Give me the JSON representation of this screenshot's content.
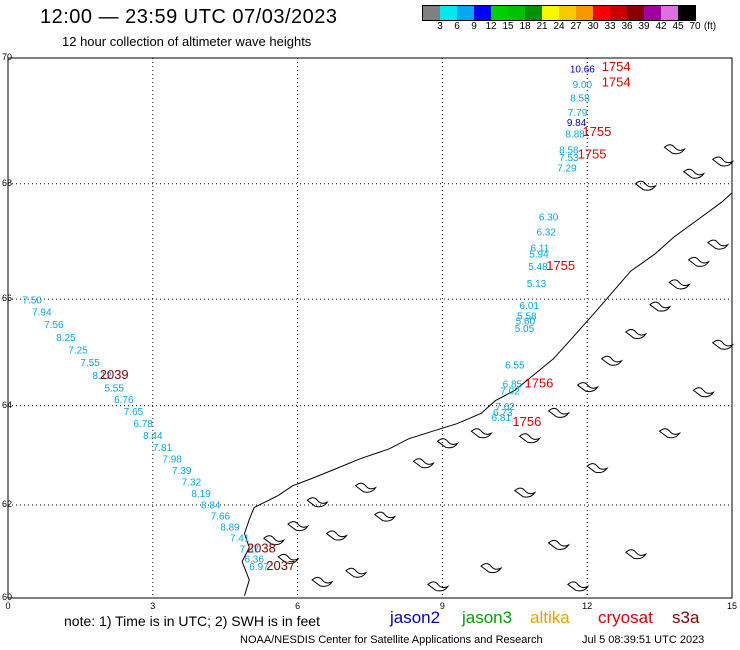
{
  "header": {
    "title": "12:00 — 23:59 UTC 07/03/2023",
    "subtitle": "12 hour collection of altimeter wave heights"
  },
  "legend": {
    "unit": "(ft)",
    "bins": [
      {
        "label": "3",
        "color": "#808080"
      },
      {
        "label": "6",
        "color": "#00e8f0"
      },
      {
        "label": "9",
        "color": "#00a8f0"
      },
      {
        "label": "12",
        "color": "#0000f8"
      },
      {
        "label": "15",
        "color": "#00d000"
      },
      {
        "label": "18",
        "color": "#00c000"
      },
      {
        "label": "21",
        "color": "#009000"
      },
      {
        "label": "24",
        "color": "#f8f800"
      },
      {
        "label": "27",
        "color": "#f8c800"
      },
      {
        "label": "30",
        "color": "#f89800"
      },
      {
        "label": "33",
        "color": "#f80000"
      },
      {
        "label": "36",
        "color": "#c80000"
      },
      {
        "label": "39",
        "color": "#880000"
      },
      {
        "label": "42",
        "color": "#a000a0"
      },
      {
        "label": "45",
        "color": "#e070e0"
      },
      {
        "label": "70",
        "color": "#000000"
      }
    ]
  },
  "axes": {
    "lat_ticks": [
      {
        "label": "70",
        "value": 70
      },
      {
        "label": "68",
        "value": 68
      },
      {
        "label": "66",
        "value": 66
      },
      {
        "label": "64",
        "value": 64
      },
      {
        "label": "62",
        "value": 62
      },
      {
        "label": "60",
        "value": 60
      }
    ],
    "lon_ticks": [
      {
        "label": "0",
        "value": 0
      },
      {
        "label": "3",
        "value": 3
      },
      {
        "label": "6",
        "value": 6
      },
      {
        "label": "9",
        "value": 9
      },
      {
        "label": "12",
        "value": 12
      },
      {
        "label": "15",
        "value": 15
      }
    ]
  },
  "observations": {
    "track_east": [
      {
        "h": "10.66",
        "c": "#0000c8",
        "lon": 11.9,
        "lat": 69.78
      },
      {
        "h": "9.00",
        "c": "#00a8e8",
        "lon": 11.9,
        "lat": 69.54
      },
      {
        "h": "8.58",
        "c": "#00a8e8",
        "lon": 11.85,
        "lat": 69.33
      },
      {
        "h": "7.79",
        "c": "#00a8e8",
        "lon": 11.8,
        "lat": 69.1
      },
      {
        "h": "9.84",
        "c": "#0000c8",
        "lon": 11.78,
        "lat": 68.94
      },
      {
        "h": "8.88",
        "c": "#00a8e8",
        "lon": 11.75,
        "lat": 68.76
      },
      {
        "h": "8.58",
        "c": "#00a8e8",
        "lon": 11.62,
        "lat": 68.5
      },
      {
        "h": "7.53",
        "c": "#00a8e8",
        "lon": 11.62,
        "lat": 68.38
      },
      {
        "h": "7.29",
        "c": "#00a8e8",
        "lon": 11.58,
        "lat": 68.2
      },
      {
        "h": "6.30",
        "c": "#00a8e8",
        "lon": 11.2,
        "lat": 67.38
      },
      {
        "h": "6.32",
        "c": "#00a8e8",
        "lon": 11.15,
        "lat": 67.12
      },
      {
        "h": "6.11",
        "c": "#00a8e8",
        "lon": 11.02,
        "lat": 66.85
      },
      {
        "h": "5.94",
        "c": "#00a8e8",
        "lon": 11.0,
        "lat": 66.74
      },
      {
        "h": "5.48",
        "c": "#00a8e8",
        "lon": 10.98,
        "lat": 66.52
      },
      {
        "h": "5.13",
        "c": "#00a8e8",
        "lon": 10.95,
        "lat": 66.22
      },
      {
        "h": "6.01",
        "c": "#00a8e8",
        "lon": 10.8,
        "lat": 65.82
      },
      {
        "h": "5.58",
        "c": "#00a8e8",
        "lon": 10.75,
        "lat": 65.63
      },
      {
        "h": "5.60",
        "c": "#00a8e8",
        "lon": 10.72,
        "lat": 65.54
      },
      {
        "h": "5.05",
        "c": "#00a8e8",
        "lon": 10.7,
        "lat": 65.4
      },
      {
        "h": "6.55",
        "c": "#00a8e8",
        "lon": 10.5,
        "lat": 64.72
      },
      {
        "h": "6.85",
        "c": "#00a8e8",
        "lon": 10.45,
        "lat": 64.35
      },
      {
        "h": "7.02",
        "c": "#00a8e8",
        "lon": 10.4,
        "lat": 64.22
      },
      {
        "h": "7.62",
        "c": "#00a8e8",
        "lon": 10.3,
        "lat": 63.92
      },
      {
        "h": "6.73",
        "c": "#00a8e8",
        "lon": 10.25,
        "lat": 63.8
      },
      {
        "h": "6.81",
        "c": "#00a8e8",
        "lon": 10.22,
        "lat": 63.7
      }
    ],
    "track_west": [
      {
        "h": "7.50",
        "c": "#00a8e8",
        "lon": 0.5,
        "lat": 65.92
      },
      {
        "h": "7.94",
        "c": "#00a8e8",
        "lon": 0.7,
        "lat": 65.7
      },
      {
        "h": "7.56",
        "c": "#00a8e8",
        "lon": 0.95,
        "lat": 65.47
      },
      {
        "h": "8.25",
        "c": "#00a8e8",
        "lon": 1.2,
        "lat": 65.23
      },
      {
        "h": "7.25",
        "c": "#00a8e8",
        "lon": 1.45,
        "lat": 65.0
      },
      {
        "h": "7.55",
        "c": "#00a8e8",
        "lon": 1.7,
        "lat": 64.76
      },
      {
        "h": "8.12",
        "c": "#00a8e8",
        "lon": 1.95,
        "lat": 64.52
      },
      {
        "h": "5.55",
        "c": "#00a8e8",
        "lon": 2.2,
        "lat": 64.28
      },
      {
        "h": "6.76",
        "c": "#00a8e8",
        "lon": 2.4,
        "lat": 64.05
      },
      {
        "h": "7.65",
        "c": "#00a8e8",
        "lon": 2.6,
        "lat": 63.82
      },
      {
        "h": "6.78",
        "c": "#00a8e8",
        "lon": 2.8,
        "lat": 63.58
      },
      {
        "h": "8.44",
        "c": "#00a8e8",
        "lon": 3.0,
        "lat": 63.35
      },
      {
        "h": "7.81",
        "c": "#00a8e8",
        "lon": 3.2,
        "lat": 63.11
      },
      {
        "h": "7.98",
        "c": "#00a8e8",
        "lon": 3.4,
        "lat": 62.87
      },
      {
        "h": "7.39",
        "c": "#00a8e8",
        "lon": 3.6,
        "lat": 62.64
      },
      {
        "h": "7.32",
        "c": "#00a8e8",
        "lon": 3.8,
        "lat": 62.4
      },
      {
        "h": "8.19",
        "c": "#00a8e8",
        "lon": 4.0,
        "lat": 62.17
      },
      {
        "h": "8.84",
        "c": "#00a8e8",
        "lon": 4.2,
        "lat": 61.93
      },
      {
        "h": "7.66",
        "c": "#00a8e8",
        "lon": 4.4,
        "lat": 61.7
      },
      {
        "h": "8.89",
        "c": "#00a8e8",
        "lon": 4.6,
        "lat": 61.47
      },
      {
        "h": "7.41",
        "c": "#00a8e8",
        "lon": 4.8,
        "lat": 61.23
      },
      {
        "h": "7.37",
        "c": "#00a8e8",
        "lon": 5.0,
        "lat": 61.0
      },
      {
        "h": "6.36",
        "c": "#00a8e8",
        "lon": 5.1,
        "lat": 60.78
      },
      {
        "h": "6.97",
        "c": "#00a8e8",
        "lon": 5.2,
        "lat": 60.62
      }
    ],
    "time_labels": [
      {
        "t": "1754",
        "c": "#e00000",
        "lon": 12.6,
        "lat": 69.8
      },
      {
        "t": "1754",
        "c": "#e00000",
        "lon": 12.6,
        "lat": 69.56
      },
      {
        "t": "1755",
        "c": "#e00000",
        "lon": 12.2,
        "lat": 68.78
      },
      {
        "t": "1755",
        "c": "#e00000",
        "lon": 12.1,
        "lat": 68.42
      },
      {
        "t": "1755",
        "c": "#e00000",
        "lon": 11.45,
        "lat": 66.52
      },
      {
        "t": "1756",
        "c": "#e00000",
        "lon": 11.0,
        "lat": 64.35
      },
      {
        "t": "1756",
        "c": "#e00000",
        "lon": 10.75,
        "lat": 63.6
      },
      {
        "t": "2039",
        "c": "#880000",
        "lon": 2.2,
        "lat": 64.52
      },
      {
        "t": "2038",
        "c": "#880000",
        "lon": 5.25,
        "lat": 61.0
      },
      {
        "t": "2037",
        "c": "#880000",
        "lon": 5.65,
        "lat": 60.62
      }
    ]
  },
  "note": "note:  1) Time is in UTC;  2) SWH is in feet",
  "satellites": [
    {
      "name": "jason2",
      "color": "#0000c8"
    },
    {
      "name": "jason3",
      "color": "#00a000"
    },
    {
      "name": "altika",
      "color": "#f0a000"
    },
    {
      "name": "cryosat",
      "color": "#e00000"
    },
    {
      "name": "s3a",
      "color": "#880000"
    }
  ],
  "footer": {
    "credit": "NOAA/NESDIS Center for Satellite Applications and Research",
    "generated": "Jul  5 08:39:51 UTC 2023"
  }
}
